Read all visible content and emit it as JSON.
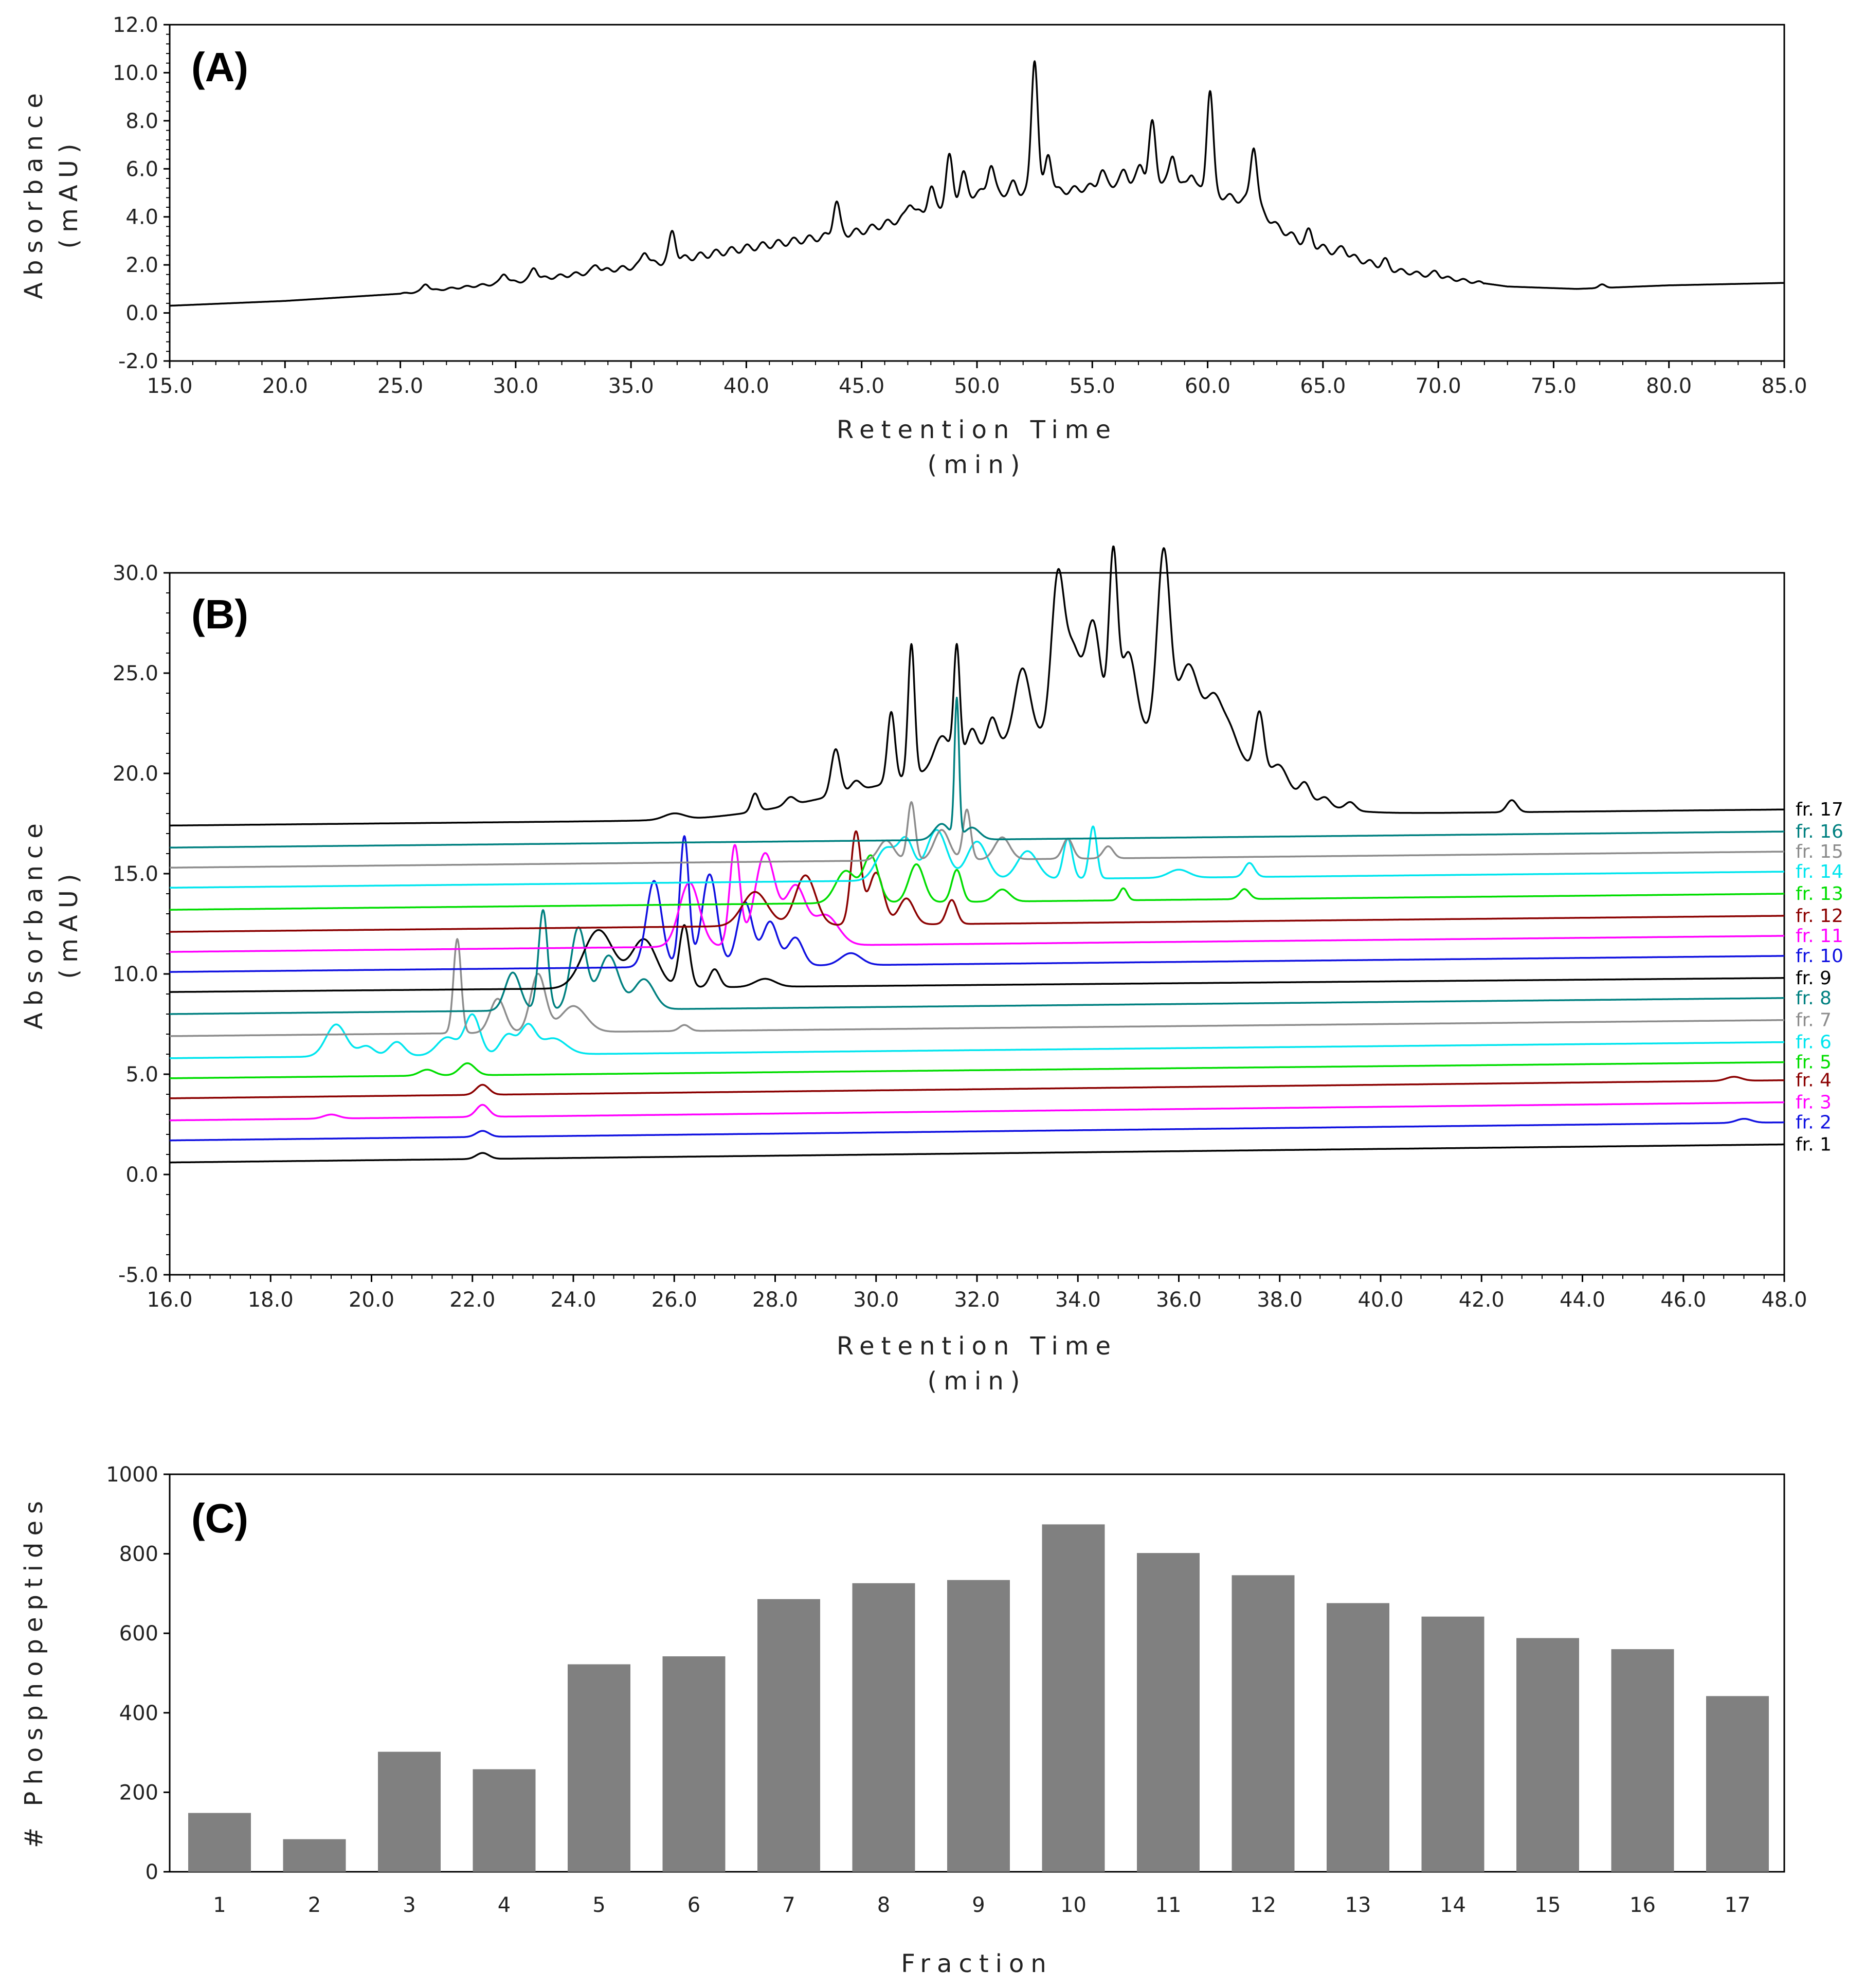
{
  "colors": {
    "black": "#000000",
    "blue": "#1010e0",
    "magenta": "#ff00ff",
    "darkred": "#8b0000",
    "green": "#00dd00",
    "cyan": "#00e5ee",
    "gray": "#8c8c8c",
    "teal": "#008080",
    "bar": "#808080"
  },
  "chart_data": [
    {
      "panel": "(A)",
      "type": "line",
      "xlabel": "Retention Time",
      "xunit": "(min)",
      "ylabel": "Absorbance",
      "yunit": "(mAU)",
      "xlim": [
        15,
        85
      ],
      "ylim": [
        -2,
        12
      ],
      "xticks": [
        "15.0",
        "20.0",
        "25.0",
        "30.0",
        "35.0",
        "40.0",
        "45.0",
        "50.0",
        "55.0",
        "60.0",
        "65.0",
        "70.0",
        "75.0",
        "80.0",
        "85.0"
      ],
      "yticks": [
        "-2.0",
        "0.0",
        "2.0",
        "4.0",
        "6.0",
        "8.0",
        "10.0",
        "12.0"
      ],
      "color": "#000000",
      "baseline": [
        [
          15,
          0.3
        ],
        [
          20,
          0.5
        ],
        [
          25,
          0.8
        ],
        [
          30,
          1.3
        ],
        [
          35,
          1.9
        ],
        [
          40,
          2.7
        ],
        [
          45,
          3.4
        ],
        [
          48,
          4.3
        ],
        [
          50,
          5.0
        ],
        [
          52,
          5.0
        ],
        [
          54,
          5.1
        ],
        [
          56,
          5.4
        ],
        [
          58,
          5.5
        ],
        [
          60,
          5.0
        ],
        [
          62,
          4.6
        ],
        [
          63,
          3.6
        ],
        [
          64,
          3.0
        ],
        [
          66,
          2.4
        ],
        [
          68,
          1.8
        ],
        [
          70,
          1.5
        ],
        [
          73,
          1.1
        ],
        [
          76,
          1.0
        ],
        [
          80,
          1.15
        ],
        [
          85,
          1.25
        ]
      ],
      "peaks": [
        [
          26.1,
          0.3
        ],
        [
          29.5,
          0.4
        ],
        [
          30.8,
          0.5
        ],
        [
          33.5,
          0.3
        ],
        [
          35.6,
          0.6
        ],
        [
          36.8,
          1.2
        ],
        [
          43.9,
          1.4
        ],
        [
          47.1,
          0.6
        ],
        [
          48.0,
          0.9
        ],
        [
          48.8,
          1.9
        ],
        [
          49.4,
          1.0
        ],
        [
          50.6,
          1.2
        ],
        [
          51.6,
          0.4
        ],
        [
          52.5,
          5.6
        ],
        [
          53.1,
          1.6
        ],
        [
          55.4,
          0.6
        ],
        [
          56.4,
          0.5
        ],
        [
          57.1,
          0.7
        ],
        [
          57.6,
          2.4
        ],
        [
          58.5,
          1.2
        ],
        [
          59.3,
          0.7
        ],
        [
          60.1,
          4.3
        ],
        [
          62.0,
          2.4
        ],
        [
          64.4,
          0.5
        ],
        [
          65.9,
          0.3
        ],
        [
          67.7,
          0.3
        ],
        [
          69.9,
          0.2
        ],
        [
          77.1,
          0.15
        ]
      ]
    },
    {
      "panel": "(B)",
      "type": "line",
      "xlabel": "Retention Time",
      "xunit": "(min)",
      "ylabel": "Absorbance",
      "yunit": "(mAU)",
      "xlim": [
        16,
        48
      ],
      "ylim": [
        -5,
        30
      ],
      "xticks": [
        "16.0",
        "18.0",
        "20.0",
        "22.0",
        "24.0",
        "26.0",
        "28.0",
        "30.0",
        "32.0",
        "34.0",
        "36.0",
        "38.0",
        "40.0",
        "42.0",
        "44.0",
        "46.0",
        "48.0"
      ],
      "yticks": [
        "-5.0",
        "0.0",
        "5.0",
        "10.0",
        "15.0",
        "20.0",
        "25.0",
        "30.0"
      ],
      "series": [
        {
          "name": "fr. 1",
          "color": "#000000",
          "start": 0.6,
          "end": 1.5,
          "bumps": [
            [
              22.2,
              0.3,
              0.25
            ]
          ]
        },
        {
          "name": "fr. 2",
          "color": "#1010e0",
          "start": 1.7,
          "end": 2.6,
          "bumps": [
            [
              22.2,
              0.3,
              0.25
            ],
            [
              47.2,
              0.2,
              0.3
            ]
          ]
        },
        {
          "name": "fr. 3",
          "color": "#ff00ff",
          "start": 2.7,
          "end": 3.6,
          "bumps": [
            [
              22.2,
              0.6,
              0.25
            ],
            [
              19.2,
              0.2,
              0.3
            ]
          ]
        },
        {
          "name": "fr. 4",
          "color": "#8b0000",
          "start": 3.8,
          "end": 4.7,
          "bumps": [
            [
              22.2,
              0.5,
              0.25
            ],
            [
              47.0,
              0.2,
              0.3
            ]
          ]
        },
        {
          "name": "fr. 5",
          "color": "#00dd00",
          "start": 4.8,
          "end": 5.6,
          "bumps": [
            [
              21.9,
              0.6,
              0.3
            ],
            [
              21.1,
              0.3,
              0.3
            ]
          ]
        },
        {
          "name": "fr. 6",
          "color": "#00e5ee",
          "start": 5.8,
          "end": 6.6,
          "bumps": [
            [
              19.3,
              1.6,
              0.4
            ],
            [
              19.9,
              0.5,
              0.3
            ],
            [
              20.5,
              0.7,
              0.3
            ],
            [
              21.5,
              0.9,
              0.4
            ],
            [
              22.0,
              2.0,
              0.3
            ],
            [
              22.7,
              1.0,
              0.3
            ],
            [
              23.1,
              1.4,
              0.3
            ],
            [
              23.6,
              0.8,
              0.5
            ]
          ]
        },
        {
          "name": "fr. 7",
          "color": "#8c8c8c",
          "start": 6.9,
          "end": 7.7,
          "bumps": [
            [
              21.7,
              4.7,
              0.15
            ],
            [
              22.5,
              1.7,
              0.3
            ],
            [
              23.3,
              2.9,
              0.3
            ],
            [
              24.0,
              1.3,
              0.5
            ],
            [
              26.2,
              0.3,
              0.2
            ]
          ]
        },
        {
          "name": "fr. 8",
          "color": "#008080",
          "start": 8.0,
          "end": 8.8,
          "bumps": [
            [
              23.4,
              5.0,
              0.18
            ],
            [
              22.8,
              1.9,
              0.3
            ],
            [
              24.1,
              4.1,
              0.3
            ],
            [
              24.7,
              2.7,
              0.4
            ],
            [
              25.4,
              1.5,
              0.4
            ]
          ]
        },
        {
          "name": "fr. 9",
          "color": "#000000",
          "start": 9.1,
          "end": 9.8,
          "bumps": [
            [
              24.5,
              2.9,
              0.6
            ],
            [
              25.4,
              2.4,
              0.5
            ],
            [
              26.2,
              3.1,
              0.2
            ],
            [
              26.8,
              0.9,
              0.2
            ],
            [
              27.8,
              0.4,
              0.4
            ]
          ]
        },
        {
          "name": "fr. 10",
          "color": "#1010e0",
          "start": 10.1,
          "end": 10.9,
          "bumps": [
            [
              25.6,
              4.3,
              0.3
            ],
            [
              26.2,
              6.5,
              0.18
            ],
            [
              26.7,
              4.6,
              0.3
            ],
            [
              27.4,
              3.2,
              0.3
            ],
            [
              27.9,
              2.2,
              0.3
            ],
            [
              28.4,
              1.4,
              0.3
            ],
            [
              29.5,
              0.6,
              0.4
            ]
          ]
        },
        {
          "name": "fr. 11",
          "color": "#ff00ff",
          "start": 11.1,
          "end": 11.9,
          "bumps": [
            [
              26.3,
              3.2,
              0.4
            ],
            [
              27.2,
              5.0,
              0.2
            ],
            [
              27.8,
              4.6,
              0.4
            ],
            [
              28.4,
              2.9,
              0.4
            ],
            [
              29.0,
              1.5,
              0.5
            ]
          ]
        },
        {
          "name": "fr. 12",
          "color": "#8b0000",
          "start": 12.1,
          "end": 12.9,
          "bumps": [
            [
              27.6,
              1.7,
              0.5
            ],
            [
              28.6,
              2.5,
              0.4
            ],
            [
              29.6,
              4.6,
              0.2
            ],
            [
              30.0,
              2.6,
              0.3
            ],
            [
              30.6,
              1.3,
              0.3
            ],
            [
              31.5,
              1.2,
              0.2
            ]
          ]
        },
        {
          "name": "fr. 13",
          "color": "#00dd00",
          "start": 13.2,
          "end": 14.0,
          "bumps": [
            [
              29.4,
              1.6,
              0.4
            ],
            [
              29.9,
              2.3,
              0.3
            ],
            [
              30.8,
              1.9,
              0.3
            ],
            [
              31.6,
              1.6,
              0.2
            ],
            [
              32.5,
              0.6,
              0.3
            ],
            [
              34.9,
              0.6,
              0.15
            ],
            [
              37.3,
              0.5,
              0.2
            ]
          ]
        },
        {
          "name": "fr. 14",
          "color": "#00e5ee",
          "start": 14.3,
          "end": 15.1,
          "bumps": [
            [
              30.2,
              1.6,
              0.4
            ],
            [
              30.6,
              1.9,
              0.3
            ],
            [
              31.2,
              2.5,
              0.4
            ],
            [
              32.0,
              1.9,
              0.4
            ],
            [
              33.0,
              1.4,
              0.4
            ],
            [
              33.8,
              2.0,
              0.18
            ],
            [
              34.3,
              2.6,
              0.15
            ],
            [
              36.0,
              0.4,
              0.4
            ],
            [
              37.4,
              0.7,
              0.2
            ]
          ]
        },
        {
          "name": "fr. 15",
          "color": "#8c8c8c",
          "start": 15.3,
          "end": 16.1,
          "bumps": [
            [
              30.2,
              1.0,
              0.3
            ],
            [
              30.7,
              2.9,
              0.15
            ],
            [
              31.3,
              1.5,
              0.3
            ],
            [
              31.8,
              2.5,
              0.15
            ],
            [
              32.5,
              1.1,
              0.3
            ],
            [
              33.8,
              1.0,
              0.2
            ],
            [
              34.6,
              0.6,
              0.2
            ]
          ]
        },
        {
          "name": "fr. 16",
          "color": "#008080",
          "start": 16.3,
          "end": 17.1,
          "bumps": [
            [
              31.6,
              6.9,
              0.09
            ],
            [
              31.3,
              0.8,
              0.3
            ],
            [
              31.9,
              0.6,
              0.3
            ]
          ]
        },
        {
          "name": "fr. 17",
          "color": "#000000",
          "start": 17.4,
          "end": 18.2,
          "bumps": [
            [
              26.0,
              0.3,
              0.4
            ],
            [
              27.6,
              0.9,
              0.15
            ],
            [
              28.3,
              0.4,
              0.2
            ],
            [
              29.2,
              2.3,
              0.18
            ],
            [
              29.6,
              0.5,
              0.2
            ],
            [
              30.3,
              3.5,
              0.15
            ],
            [
              30.7,
              6.6,
              0.13
            ],
            [
              31.3,
              1.5,
              0.3
            ],
            [
              31.6,
              5.6,
              0.12
            ],
            [
              31.9,
              1.3,
              0.2
            ],
            [
              32.3,
              1.5,
              0.2
            ],
            [
              32.9,
              3.5,
              0.3
            ],
            [
              33.6,
              7.6,
              0.25
            ],
            [
              33.9,
              4.0,
              0.3
            ],
            [
              34.3,
              5.5,
              0.3
            ],
            [
              34.7,
              8.6,
              0.17
            ],
            [
              35.0,
              4.0,
              0.3
            ],
            [
              35.7,
              9.0,
              0.25
            ],
            [
              36.2,
              3.5,
              0.4
            ],
            [
              36.7,
              2.2,
              0.3
            ],
            [
              37.0,
              1.2,
              0.3
            ],
            [
              37.6,
              3.0,
              0.18
            ],
            [
              38.0,
              1.0,
              0.3
            ],
            [
              38.5,
              0.8,
              0.2
            ],
            [
              38.9,
              0.4,
              0.2
            ],
            [
              39.4,
              0.4,
              0.2
            ],
            [
              42.6,
              0.6,
              0.2
            ]
          ],
          "broad": [
            [
              33.5,
              4.0,
              2.0
            ],
            [
              36.5,
              2.5,
              1.2
            ],
            [
              29.5,
              0.8,
              1.5
            ]
          ]
        }
      ]
    },
    {
      "panel": "(C)",
      "type": "bar",
      "xlabel": "Fraction",
      "ylabel": "# Phosphopeptides",
      "ylim": [
        0,
        1000
      ],
      "yticks": [
        "0",
        "200",
        "400",
        "600",
        "800",
        "1000"
      ],
      "categories": [
        "1",
        "2",
        "3",
        "4",
        "5",
        "6",
        "7",
        "8",
        "9",
        "10",
        "11",
        "12",
        "13",
        "14",
        "15",
        "16",
        "17"
      ],
      "values": [
        148,
        82,
        302,
        258,
        522,
        542,
        686,
        726,
        734,
        874,
        802,
        746,
        676,
        642,
        588,
        560,
        442
      ],
      "color": "#808080"
    }
  ]
}
